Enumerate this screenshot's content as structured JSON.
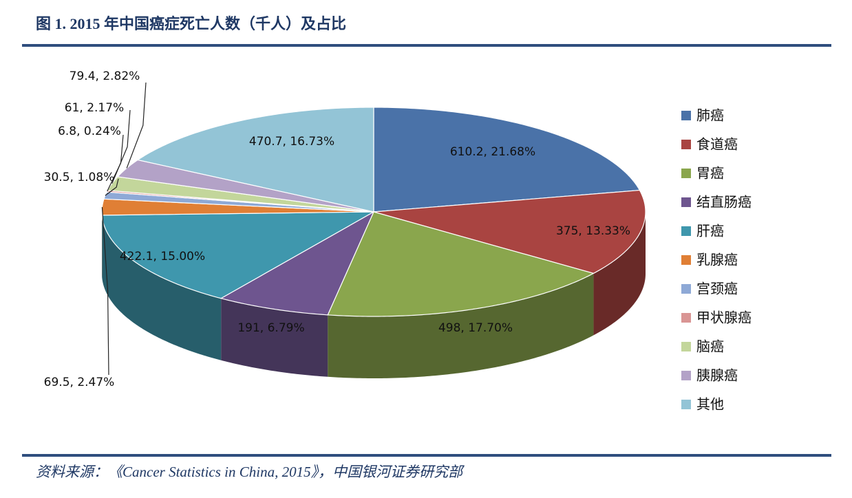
{
  "chart_data": {
    "type": "pie3d",
    "title": "图 1. 2015 年中国癌症死亡人数（千人）及占比",
    "categories": [
      "肺癌",
      "食道癌",
      "胃癌",
      "结直肠癌",
      "肝癌",
      "乳腺癌",
      "宫颈癌",
      "甲状腺癌",
      "脑癌",
      "胰腺癌",
      "其他"
    ],
    "values": [
      610.2,
      375,
      498,
      191,
      422.1,
      69.5,
      30.5,
      6.8,
      61,
      79.4,
      470.7
    ],
    "value_labels": [
      "610.2, 21.68%",
      "375, 13.33%",
      "498, 17.70%",
      "191, 6.79%",
      "422.1, 15.00%",
      "69.5, 2.47%",
      "30.5, 1.08%",
      "6.8, 0.24%",
      "61, 2.17%",
      "79.4, 2.82%",
      "470.7, 16.73%"
    ],
    "colors": [
      "#4a72a8",
      "#a94441",
      "#8aa64d",
      "#6e558f",
      "#3f97ad",
      "#e07f35",
      "#8ea9d6",
      "#d99594",
      "#c3d69b",
      "#b3a2c7",
      "#93c4d6"
    ],
    "legend_position": "right",
    "source": "资料来源：《Cancer Statistics in China, 2015》，中国银河证券研究部"
  }
}
